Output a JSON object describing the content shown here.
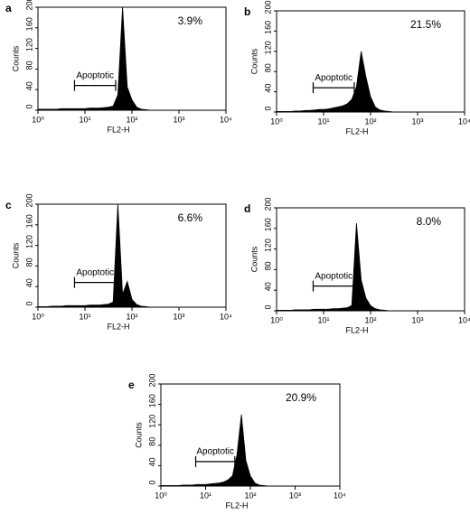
{
  "chart_data": [
    {
      "type": "area",
      "panel": "a",
      "annotation": "3.9%",
      "gate_label": "Apoptotic",
      "gate": [
        6,
        45
      ],
      "ylabel": "Counts",
      "xlabel": "FL2-H",
      "xscale": "log",
      "color": "#000000",
      "xlim": [
        1,
        10000
      ],
      "xticks": [
        {
          "value": 1,
          "label": "10⁰"
        },
        {
          "value": 10,
          "label": "10¹"
        },
        {
          "value": 100,
          "label": "10²"
        },
        {
          "value": 1000,
          "label": "10³"
        },
        {
          "value": 10000,
          "label": "10⁴"
        }
      ],
      "ylim": [
        0,
        200
      ],
      "yticks": [
        0,
        40,
        80,
        120,
        160,
        200
      ],
      "x": [
        1,
        1.26,
        1.58,
        2,
        2.51,
        3.16,
        3.98,
        5.01,
        6.31,
        7.94,
        10,
        12.6,
        15.8,
        20,
        25.1,
        31.6,
        39.8,
        50.1,
        63.1,
        79.4,
        100,
        126,
        158,
        200,
        251,
        316,
        398
      ],
      "values": [
        2,
        2,
        2,
        2,
        2,
        3,
        3,
        3,
        3,
        3,
        3,
        4,
        4,
        4,
        5,
        6,
        8,
        30,
        200,
        45,
        20,
        6,
        2,
        1,
        0,
        0,
        0
      ]
    },
    {
      "type": "area",
      "panel": "b",
      "annotation": "21.5%",
      "gate_label": "Apoptotic",
      "gate": [
        6,
        45
      ],
      "ylabel": "Counts",
      "xlabel": "FL2-H",
      "xscale": "log",
      "color": "#000000",
      "xlim": [
        1,
        10000
      ],
      "xticks": [
        {
          "value": 1,
          "label": "10⁰"
        },
        {
          "value": 10,
          "label": "10¹"
        },
        {
          "value": 100,
          "label": "10²"
        },
        {
          "value": 1000,
          "label": "10³"
        },
        {
          "value": 10000,
          "label": "10⁴"
        }
      ],
      "ylim": [
        0,
        200
      ],
      "yticks": [
        0,
        40,
        80,
        120,
        160,
        200
      ],
      "x": [
        1,
        1.26,
        1.58,
        2,
        2.51,
        3.16,
        3.98,
        5.01,
        6.31,
        7.94,
        10,
        12.6,
        15.8,
        20,
        25.1,
        31.6,
        39.8,
        50.1,
        63.1,
        79.4,
        100,
        126,
        158,
        200,
        251,
        316,
        398
      ],
      "values": [
        1,
        1,
        1,
        1,
        2,
        2,
        3,
        3,
        4,
        5,
        5,
        6,
        8,
        10,
        12,
        16,
        25,
        50,
        120,
        70,
        30,
        10,
        4,
        2,
        1,
        0,
        0
      ]
    },
    {
      "type": "area",
      "panel": "c",
      "annotation": "6.6%",
      "gate_label": "Apoptotic",
      "gate": [
        6,
        45
      ],
      "ylabel": "Counts",
      "xlabel": "FL2-H",
      "xscale": "log",
      "color": "#000000",
      "xlim": [
        1,
        10000
      ],
      "xticks": [
        {
          "value": 1,
          "label": "10⁰"
        },
        {
          "value": 10,
          "label": "10¹"
        },
        {
          "value": 100,
          "label": "10²"
        },
        {
          "value": 1000,
          "label": "10³"
        },
        {
          "value": 10000,
          "label": "10⁴"
        }
      ],
      "ylim": [
        0,
        200
      ],
      "yticks": [
        0,
        40,
        80,
        120,
        160,
        200
      ],
      "x": [
        1,
        1.26,
        1.58,
        2,
        2.51,
        3.16,
        3.98,
        5.01,
        6.31,
        7.94,
        10,
        12.6,
        15.8,
        20,
        25.1,
        31.6,
        39.8,
        50.1,
        63.1,
        79.4,
        100,
        126,
        158,
        200,
        251,
        316,
        398
      ],
      "values": [
        1,
        1,
        1,
        2,
        2,
        2,
        3,
        3,
        3,
        3,
        3,
        4,
        4,
        4,
        5,
        6,
        10,
        200,
        25,
        50,
        15,
        5,
        2,
        1,
        0,
        0,
        0
      ]
    },
    {
      "type": "area",
      "panel": "d",
      "annotation": "8.0%",
      "gate_label": "Apoptotic",
      "gate": [
        6,
        45
      ],
      "ylabel": "Counts",
      "xlabel": "FL2-H",
      "xscale": "log",
      "color": "#000000",
      "xlim": [
        1,
        10000
      ],
      "xticks": [
        {
          "value": 1,
          "label": "10⁰"
        },
        {
          "value": 10,
          "label": "10¹"
        },
        {
          "value": 100,
          "label": "10²"
        },
        {
          "value": 1000,
          "label": "10³"
        },
        {
          "value": 10000,
          "label": "10⁴"
        }
      ],
      "ylim": [
        0,
        200
      ],
      "yticks": [
        0,
        40,
        80,
        120,
        160,
        200
      ],
      "x": [
        1,
        1.26,
        1.58,
        2,
        2.51,
        3.16,
        3.98,
        5.01,
        6.31,
        7.94,
        10,
        12.6,
        15.8,
        20,
        25.1,
        31.6,
        39.8,
        50.1,
        63.1,
        79.4,
        100,
        126,
        158,
        200,
        251,
        316,
        398
      ],
      "values": [
        1,
        1,
        1,
        1,
        2,
        2,
        2,
        2,
        3,
        3,
        3,
        3,
        4,
        4,
        5,
        6,
        10,
        170,
        60,
        25,
        10,
        4,
        2,
        1,
        0,
        0,
        0
      ]
    },
    {
      "type": "area",
      "panel": "e",
      "annotation": "20.9%",
      "gate_label": "Apoptotic",
      "gate": [
        6,
        45
      ],
      "ylabel": "Counts",
      "xlabel": "FL2-H",
      "xscale": "log",
      "color": "#000000",
      "xlim": [
        1,
        10000
      ],
      "xticks": [
        {
          "value": 1,
          "label": "10⁰"
        },
        {
          "value": 10,
          "label": "10¹"
        },
        {
          "value": 100,
          "label": "10²"
        },
        {
          "value": 1000,
          "label": "10³"
        },
        {
          "value": 10000,
          "label": "10⁴"
        }
      ],
      "ylim": [
        0,
        200
      ],
      "yticks": [
        0,
        40,
        80,
        120,
        160,
        200
      ],
      "x": [
        1,
        1.26,
        1.58,
        2,
        2.51,
        3.16,
        3.98,
        5.01,
        6.31,
        7.94,
        10,
        12.6,
        15.8,
        20,
        25.1,
        31.6,
        39.8,
        50.1,
        63.1,
        79.4,
        100,
        126,
        158,
        200,
        251,
        316,
        398
      ],
      "values": [
        1,
        1,
        1,
        1,
        1,
        2,
        2,
        2,
        3,
        3,
        3,
        4,
        5,
        6,
        8,
        12,
        20,
        60,
        140,
        50,
        20,
        6,
        2,
        1,
        0,
        0,
        0
      ]
    }
  ]
}
